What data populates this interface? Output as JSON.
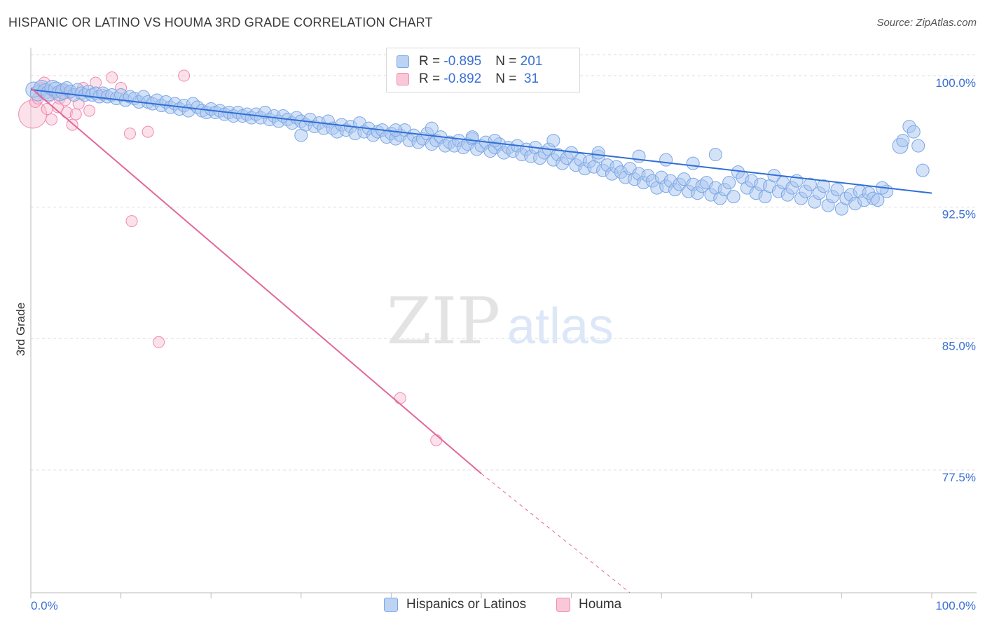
{
  "title": "HISPANIC OR LATINO VS HOUMA 3RD GRADE CORRELATION CHART",
  "source": "Source: ZipAtlas.com",
  "watermark": {
    "zip": "ZIP",
    "atlas": "atlas"
  },
  "colors": {
    "blue": "#7aa6e6",
    "blue_line": "#2f6fd6",
    "blue_fill": "#a9c6f0",
    "pink": "#f28ab0",
    "pink_line": "#e2679a",
    "pink_fill": "#f7bcd0",
    "axis_text": "#3b6fd4",
    "grid": "#dddddd"
  },
  "legend": {
    "rows": [
      {
        "r_label": "R = ",
        "r_value": "-0.895",
        "n_label": "N = ",
        "n_value": "201",
        "color": "#a9c6f0",
        "border": "#7aa6e6"
      },
      {
        "r_label": "R = ",
        "r_value": "-0.892",
        "n_label": "N = ",
        "n_value": " 31",
        "color": "#f7bcd0",
        "border": "#f28ab0"
      }
    ]
  },
  "bottom_legend": [
    "Hispanics or Latinos",
    "Houma"
  ],
  "chart_data": {
    "type": "scatter",
    "xlabel": "",
    "ylabel": "3rd Grade",
    "x_tick_labels": [
      "0.0%",
      "100.0%"
    ],
    "y_tick_labels": [
      "100.0%",
      "92.5%",
      "85.0%",
      "77.5%"
    ],
    "y_ticks": [
      100.0,
      92.5,
      85.0,
      77.5
    ],
    "xlim": [
      0,
      100
    ],
    "ylim": [
      70.5,
      101.2
    ],
    "series": [
      {
        "name": "Hispanics or Latinos",
        "color": "#7aa6e6",
        "trend": {
          "x0": 0,
          "y0": 99.2,
          "x1": 100,
          "y1": 93.3
        },
        "points": [
          [
            0.3,
            99.2
          ],
          [
            0.8,
            99.0
          ],
          [
            1.2,
            99.3
          ],
          [
            1.6,
            99.1
          ],
          [
            2.0,
            99.0
          ],
          [
            2.4,
            99.3
          ],
          [
            2.8,
            99.2
          ],
          [
            3.2,
            99.0
          ],
          [
            3.6,
            99.1
          ],
          [
            4.0,
            99.3
          ],
          [
            4.4,
            99.1
          ],
          [
            4.8,
            98.9
          ],
          [
            5.2,
            99.2
          ],
          [
            5.6,
            99.0
          ],
          [
            6.0,
            98.9
          ],
          [
            6.4,
            99.1
          ],
          [
            6.8,
            98.9
          ],
          [
            7.2,
            99.0
          ],
          [
            7.6,
            98.8
          ],
          [
            8.0,
            99.0
          ],
          [
            8.5,
            98.8
          ],
          [
            9.0,
            98.9
          ],
          [
            9.5,
            98.7
          ],
          [
            10.0,
            98.9
          ],
          [
            10.5,
            98.6
          ],
          [
            11.0,
            98.8
          ],
          [
            11.5,
            98.7
          ],
          [
            12.0,
            98.5
          ],
          [
            12.5,
            98.8
          ],
          [
            13.0,
            98.5
          ],
          [
            13.5,
            98.4
          ],
          [
            14.0,
            98.6
          ],
          [
            14.5,
            98.3
          ],
          [
            15.0,
            98.5
          ],
          [
            15.5,
            98.2
          ],
          [
            16.0,
            98.4
          ],
          [
            16.5,
            98.1
          ],
          [
            17.0,
            98.3
          ],
          [
            17.5,
            98.0
          ],
          [
            18.0,
            98.4
          ],
          [
            18.5,
            98.2
          ],
          [
            19.0,
            98.0
          ],
          [
            19.5,
            97.9
          ],
          [
            20.0,
            98.1
          ],
          [
            20.5,
            97.9
          ],
          [
            21.0,
            98.0
          ],
          [
            21.5,
            97.8
          ],
          [
            22.0,
            97.9
          ],
          [
            22.5,
            97.7
          ],
          [
            23.0,
            97.9
          ],
          [
            23.5,
            97.7
          ],
          [
            24.0,
            97.8
          ],
          [
            24.5,
            97.6
          ],
          [
            25.0,
            97.8
          ],
          [
            25.5,
            97.6
          ],
          [
            26.0,
            97.9
          ],
          [
            26.5,
            97.5
          ],
          [
            27.0,
            97.7
          ],
          [
            27.5,
            97.4
          ],
          [
            28.0,
            97.7
          ],
          [
            28.5,
            97.5
          ],
          [
            29.0,
            97.3
          ],
          [
            29.5,
            97.6
          ],
          [
            30.0,
            97.4
          ],
          [
            30.5,
            97.2
          ],
          [
            31.0,
            97.5
          ],
          [
            31.5,
            97.1
          ],
          [
            32.0,
            97.3
          ],
          [
            32.5,
            97.0
          ],
          [
            33.0,
            97.4
          ],
          [
            33.5,
            97.0
          ],
          [
            34.0,
            96.8
          ],
          [
            34.5,
            97.2
          ],
          [
            35.0,
            96.9
          ],
          [
            35.5,
            97.1
          ],
          [
            36.0,
            96.7
          ],
          [
            36.5,
            97.3
          ],
          [
            37.0,
            96.8
          ],
          [
            37.5,
            97.0
          ],
          [
            38.0,
            96.6
          ],
          [
            38.5,
            96.8
          ],
          [
            39.0,
            96.9
          ],
          [
            39.5,
            96.5
          ],
          [
            40.0,
            96.7
          ],
          [
            40.5,
            96.4
          ],
          [
            41.0,
            96.6
          ],
          [
            41.5,
            96.9
          ],
          [
            42.0,
            96.3
          ],
          [
            42.5,
            96.6
          ],
          [
            43.0,
            96.2
          ],
          [
            43.5,
            96.4
          ],
          [
            44.0,
            96.7
          ],
          [
            44.5,
            96.1
          ],
          [
            45.0,
            96.3
          ],
          [
            45.5,
            96.5
          ],
          [
            46.0,
            96.0
          ],
          [
            46.5,
            96.2
          ],
          [
            47.0,
            96.0
          ],
          [
            47.5,
            96.3
          ],
          [
            48.0,
            95.9
          ],
          [
            48.5,
            96.1
          ],
          [
            49.0,
            96.4
          ],
          [
            49.5,
            95.8
          ],
          [
            50.0,
            96.0
          ],
          [
            50.5,
            96.2
          ],
          [
            51.0,
            95.7
          ],
          [
            51.5,
            95.9
          ],
          [
            52.0,
            96.1
          ],
          [
            52.5,
            95.6
          ],
          [
            53.0,
            95.9
          ],
          [
            53.5,
            95.7
          ],
          [
            54.0,
            96.0
          ],
          [
            54.5,
            95.5
          ],
          [
            55.0,
            95.8
          ],
          [
            55.5,
            95.4
          ],
          [
            56.0,
            95.9
          ],
          [
            56.5,
            95.3
          ],
          [
            57.0,
            95.6
          ],
          [
            57.5,
            95.8
          ],
          [
            58.0,
            95.2
          ],
          [
            58.5,
            95.5
          ],
          [
            59.0,
            95.0
          ],
          [
            59.5,
            95.3
          ],
          [
            60.0,
            95.6
          ],
          [
            60.5,
            94.9
          ],
          [
            61.0,
            95.2
          ],
          [
            61.5,
            94.7
          ],
          [
            62.0,
            95.1
          ],
          [
            62.5,
            94.8
          ],
          [
            63.0,
            95.4
          ],
          [
            63.5,
            94.6
          ],
          [
            64.0,
            94.9
          ],
          [
            64.5,
            94.4
          ],
          [
            65.0,
            94.8
          ],
          [
            65.5,
            94.5
          ],
          [
            66.0,
            94.2
          ],
          [
            66.5,
            94.7
          ],
          [
            67.0,
            94.1
          ],
          [
            67.5,
            94.4
          ],
          [
            68.0,
            93.9
          ],
          [
            68.5,
            94.3
          ],
          [
            69.0,
            94.0
          ],
          [
            69.5,
            93.6
          ],
          [
            70.0,
            94.2
          ],
          [
            70.5,
            93.7
          ],
          [
            71.0,
            94.0
          ],
          [
            71.5,
            93.5
          ],
          [
            72.0,
            93.8
          ],
          [
            72.5,
            94.1
          ],
          [
            73.0,
            93.4
          ],
          [
            73.5,
            93.8
          ],
          [
            74.0,
            93.3
          ],
          [
            74.5,
            93.7
          ],
          [
            75.0,
            93.9
          ],
          [
            75.5,
            93.2
          ],
          [
            76.0,
            93.6
          ],
          [
            76.5,
            93.0
          ],
          [
            77.0,
            93.5
          ],
          [
            77.5,
            93.9
          ],
          [
            78.0,
            93.1
          ],
          [
            40.5,
            96.9
          ],
          [
            44.5,
            97.0
          ],
          [
            49.0,
            96.5
          ],
          [
            51.5,
            96.3
          ],
          [
            58.0,
            96.3
          ],
          [
            63.0,
            95.6
          ],
          [
            67.5,
            95.4
          ],
          [
            70.5,
            95.2
          ],
          [
            73.5,
            95.0
          ],
          [
            76.0,
            95.5
          ],
          [
            78.5,
            94.5
          ],
          [
            79.0,
            94.2
          ],
          [
            79.5,
            93.6
          ],
          [
            80.0,
            94.0
          ],
          [
            80.5,
            93.3
          ],
          [
            81.0,
            93.8
          ],
          [
            81.5,
            93.1
          ],
          [
            82.0,
            93.7
          ],
          [
            82.5,
            94.3
          ],
          [
            83.0,
            93.4
          ],
          [
            83.5,
            93.9
          ],
          [
            84.0,
            93.2
          ],
          [
            84.5,
            93.6
          ],
          [
            85.0,
            94.0
          ],
          [
            85.5,
            93.0
          ],
          [
            86.0,
            93.4
          ],
          [
            86.5,
            93.8
          ],
          [
            87.0,
            92.8
          ],
          [
            87.5,
            93.3
          ],
          [
            88.0,
            93.7
          ],
          [
            88.5,
            92.6
          ],
          [
            89.0,
            93.1
          ],
          [
            89.5,
            93.5
          ],
          [
            90.0,
            92.4
          ],
          [
            90.5,
            93.0
          ],
          [
            91.0,
            93.2
          ],
          [
            91.5,
            92.7
          ],
          [
            92.0,
            93.4
          ],
          [
            92.5,
            92.9
          ],
          [
            93.0,
            93.3
          ],
          [
            96.5,
            96.0
          ],
          [
            96.8,
            96.3
          ],
          [
            97.5,
            97.1
          ],
          [
            98.0,
            96.8
          ],
          [
            98.5,
            96.0
          ],
          [
            99.0,
            94.6
          ],
          [
            93.5,
            93.0
          ],
          [
            94.0,
            92.9
          ],
          [
            95.0,
            93.4
          ],
          [
            94.5,
            93.6
          ],
          [
            30.0,
            96.6
          ]
        ],
        "sizes": {
          "large_indices": [
            0,
            1,
            2,
            3,
            4,
            5,
            6,
            7,
            8,
            200
          ]
        }
      },
      {
        "name": "Houma",
        "color": "#f28ab0",
        "trend": {
          "x0": 0,
          "y0": 99.3,
          "x1": 50,
          "y1": 77.3,
          "dash_to_x": 66.5,
          "dash_to_y": 70.5
        },
        "points": [
          [
            0.2,
            97.8
          ],
          [
            0.5,
            98.5
          ],
          [
            0.8,
            98.7
          ],
          [
            1.2,
            99.3
          ],
          [
            1.5,
            99.6
          ],
          [
            1.8,
            98.1
          ],
          [
            2.0,
            98.8
          ],
          [
            2.3,
            97.5
          ],
          [
            2.6,
            99.0
          ],
          [
            3.0,
            98.2
          ],
          [
            3.2,
            98.7
          ],
          [
            3.5,
            99.2
          ],
          [
            3.8,
            98.6
          ],
          [
            4.0,
            97.9
          ],
          [
            4.3,
            99.0
          ],
          [
            4.6,
            97.2
          ],
          [
            5.0,
            97.8
          ],
          [
            5.3,
            98.4
          ],
          [
            5.8,
            99.3
          ],
          [
            6.5,
            98.0
          ],
          [
            7.2,
            99.6
          ],
          [
            8.0,
            98.9
          ],
          [
            9.0,
            99.9
          ],
          [
            10.0,
            99.3
          ],
          [
            11.0,
            96.7
          ],
          [
            13.0,
            96.8
          ],
          [
            11.2,
            91.7
          ],
          [
            14.2,
            84.8
          ],
          [
            41.0,
            81.6
          ],
          [
            45.0,
            79.2
          ],
          [
            17.0,
            100.0
          ]
        ]
      }
    ]
  }
}
